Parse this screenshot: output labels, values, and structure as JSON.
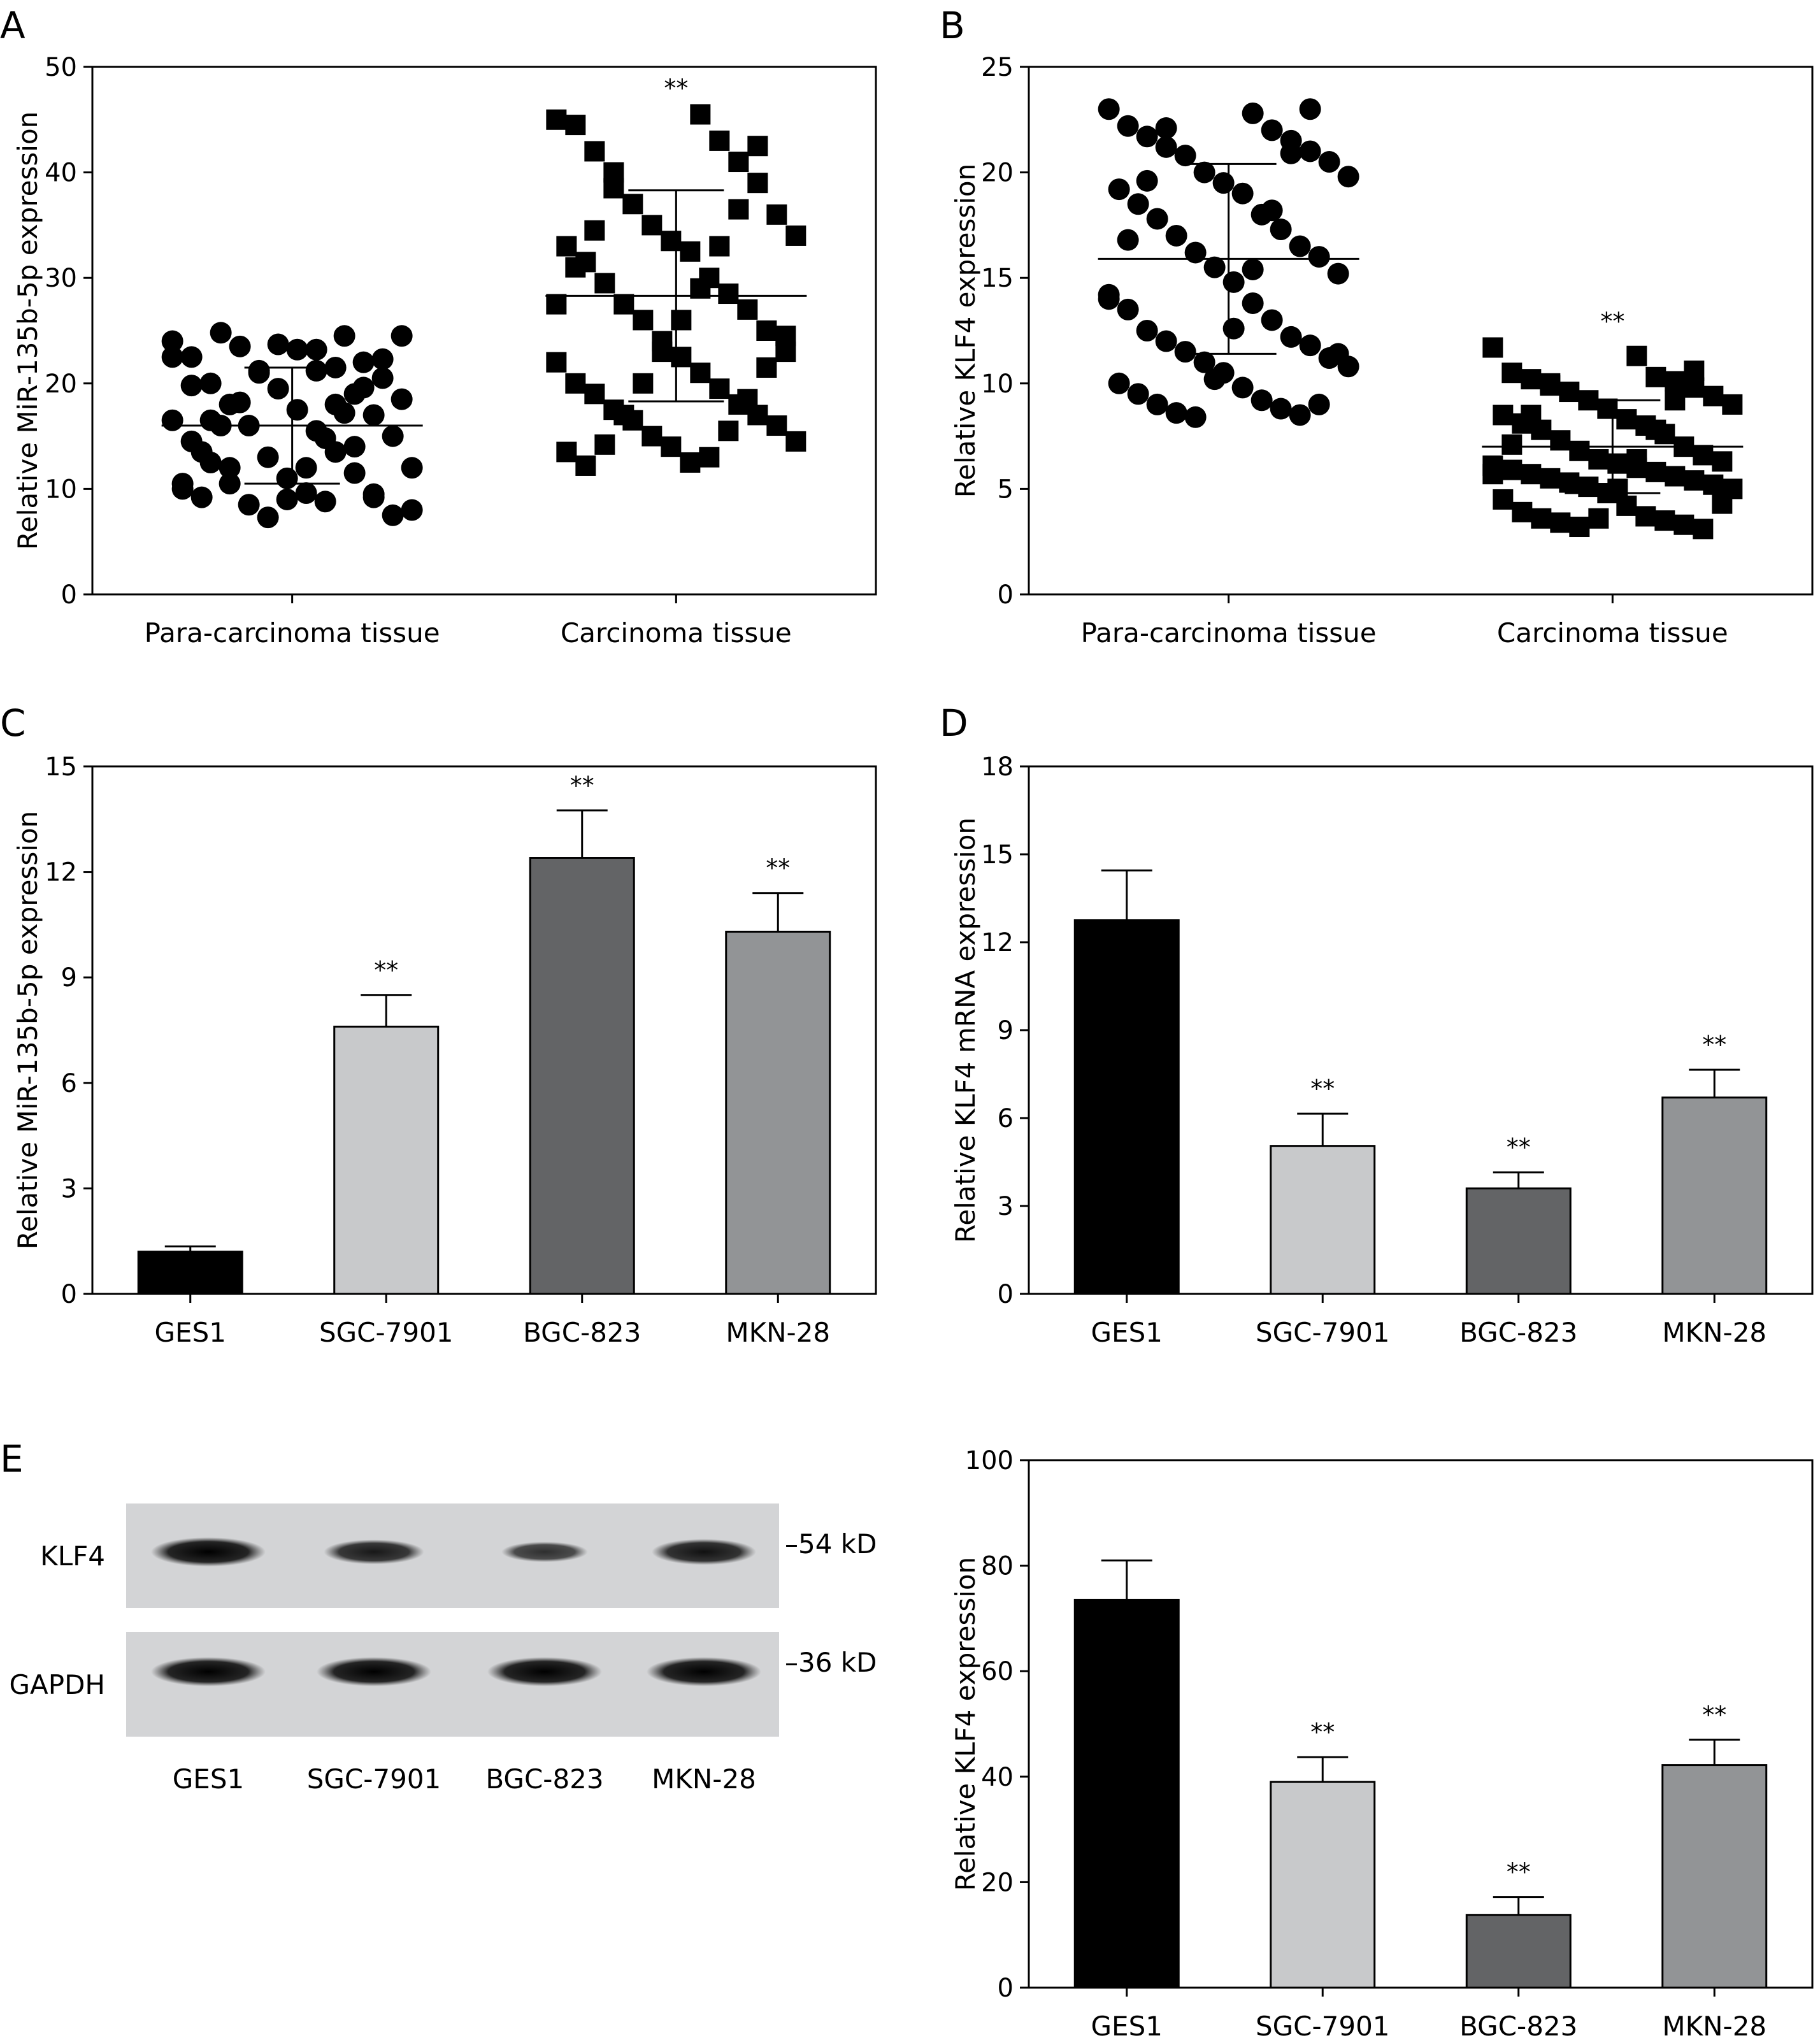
{
  "chart_data": [
    {
      "panel": "A",
      "type": "scatter",
      "ylabel": "Relative MiR-135b-5p expression",
      "ylim": [
        0,
        50
      ],
      "yticks": [
        0,
        10,
        20,
        30,
        40,
        50
      ],
      "categories": [
        "Para-carcinoma tissue",
        "Carcinoma tissue"
      ],
      "markers": [
        "circle",
        "square"
      ],
      "means": [
        16,
        28.3
      ],
      "sd": [
        5.5,
        10
      ],
      "significance": [
        "",
        "**"
      ],
      "points": [
        [
          24,
          23.2,
          22.5,
          21.5,
          20,
          19,
          18,
          17,
          16,
          15,
          13,
          12,
          11,
          10,
          9.6,
          9.2,
          8.8,
          24.8,
          24.5,
          23.5,
          22,
          21.2,
          20.5,
          19.5,
          18.5,
          17.5,
          16.5,
          15.5,
          14.5,
          13.5,
          12.5,
          11.5,
          10.5,
          9.5,
          8.5,
          7.5,
          7.3,
          8,
          9,
          10.5,
          12,
          13.5,
          14.8,
          16,
          17.2,
          18.2,
          19.6,
          21,
          22.3,
          23.7,
          24.5,
          23.2,
          22.5,
          21.2,
          19.8,
          18,
          16.5,
          14,
          12,
          9.2
        ],
        [
          45,
          45.5,
          44.5,
          43,
          42,
          41,
          40,
          39,
          37,
          36,
          35,
          34,
          33.5,
          33,
          32.5,
          31.5,
          30,
          29.5,
          28.5,
          27.5,
          27,
          26,
          25,
          24,
          23,
          22.5,
          22,
          21,
          20,
          19.5,
          19,
          18,
          17.5,
          17,
          16.5,
          16,
          15,
          14.5,
          14,
          13.5,
          12.5,
          12.2,
          13,
          14.2,
          15.5,
          17,
          18.5,
          20,
          21.5,
          23,
          24.5,
          26,
          27.5,
          29,
          31,
          33,
          34.5,
          36.5,
          38.5,
          42.5
        ]
      ]
    },
    {
      "panel": "B",
      "type": "scatter",
      "ylabel": "Relative KLF4 expression",
      "ylim": [
        0,
        25
      ],
      "yticks": [
        0,
        5,
        10,
        15,
        20,
        25
      ],
      "categories": [
        "Para-carcinoma tissue",
        "Carcinoma tissue"
      ],
      "markers": [
        "circle",
        "square"
      ],
      "means": [
        15.9,
        7
      ],
      "sd": [
        4.5,
        2.2
      ],
      "significance": [
        "",
        "**"
      ],
      "points": [
        [
          23,
          22.8,
          22.2,
          22,
          21.7,
          21.5,
          21.2,
          21,
          20.8,
          20.5,
          20,
          19.8,
          19.5,
          19.2,
          19,
          18.5,
          18,
          17.8,
          17.3,
          17,
          16.5,
          16.2,
          16,
          15.5,
          15.2,
          14.8,
          14.2,
          13.8,
          13.5,
          13,
          12.5,
          12.2,
          12,
          11.8,
          11.5,
          11.2,
          11,
          10.8,
          10.5,
          10,
          9.8,
          9.5,
          9.2,
          9,
          8.8,
          8.6,
          8.5,
          8.4,
          9,
          10.2,
          11.4,
          12.6,
          14,
          15.4,
          16.8,
          18.2,
          19.6,
          20.9,
          22.1,
          23
        ],
        [
          11.7,
          11.3,
          10.5,
          10.3,
          10.2,
          10.1,
          10,
          9.8,
          9.6,
          9.4,
          9.2,
          9,
          8.8,
          8.5,
          8.3,
          8.1,
          8,
          7.8,
          7.6,
          7.3,
          7,
          6.8,
          6.6,
          6.4,
          6.3,
          6.2,
          6.1,
          6,
          5.9,
          5.8,
          5.7,
          5.6,
          5.5,
          5.4,
          5.3,
          5.2,
          5.1,
          5,
          4.8,
          4.5,
          4.2,
          3.9,
          3.7,
          3.6,
          3.5,
          3.4,
          3.3,
          3.2,
          3.1,
          3.6,
          4.3,
          5,
          5.7,
          6.4,
          7.1,
          7.8,
          8.5,
          9.2,
          9.9,
          10.6
        ]
      ]
    },
    {
      "panel": "C",
      "type": "bar",
      "ylabel": "Relative MiR-135b-5p expression",
      "ylim": [
        0,
        15
      ],
      "yticks": [
        0,
        3,
        6,
        9,
        12,
        15
      ],
      "categories": [
        "GES1",
        "SGC-7901",
        "BGC-823",
        "MKN-28"
      ],
      "values": [
        1.2,
        7.6,
        12.4,
        10.3
      ],
      "errors": [
        0.15,
        0.9,
        1.35,
        1.1
      ],
      "colors": [
        "#000000",
        "#c8c9cb",
        "#636466",
        "#929496"
      ],
      "significance": [
        "",
        "**",
        "**",
        "**"
      ]
    },
    {
      "panel": "D",
      "type": "bar",
      "ylabel": "Relative KLF4 mRNA expression",
      "ylim": [
        0,
        18
      ],
      "yticks": [
        0,
        3,
        6,
        9,
        12,
        15,
        18
      ],
      "categories": [
        "GES1",
        "SGC-7901",
        "BGC-823",
        "MKN-28"
      ],
      "values": [
        12.75,
        5.05,
        3.6,
        6.7
      ],
      "errors": [
        1.7,
        1.1,
        0.55,
        0.95
      ],
      "colors": [
        "#000000",
        "#c8c9cb",
        "#636466",
        "#929496"
      ],
      "significance": [
        "",
        "**",
        "**",
        "**"
      ]
    },
    {
      "panel": "",
      "type": "bar",
      "ylabel": "Relative KLF4 expression",
      "ylim": [
        0,
        100
      ],
      "yticks": [
        0,
        20,
        40,
        60,
        80,
        100
      ],
      "categories": [
        "GES1",
        "SGC-7901",
        "BGC-823",
        "MKN-28"
      ],
      "values": [
        73.5,
        39,
        13.8,
        42.2
      ],
      "errors": [
        7.5,
        4.7,
        3.4,
        4.8
      ],
      "colors": [
        "#000000",
        "#c8c9cb",
        "#636466",
        "#929496"
      ],
      "significance": [
        "",
        "**",
        "**",
        "**"
      ]
    }
  ],
  "blot": {
    "panel": "E",
    "rows": [
      {
        "label": "KLF4",
        "size": "–54 kD",
        "intensity": [
          1.0,
          0.72,
          0.45,
          0.8
        ]
      },
      {
        "label": "GAPDH",
        "size": "–36 kD",
        "intensity": [
          1.0,
          1.0,
          1.0,
          1.0
        ]
      }
    ],
    "lanes": [
      "GES1",
      "SGC-7901",
      "BGC-823",
      "MKN-28"
    ]
  }
}
